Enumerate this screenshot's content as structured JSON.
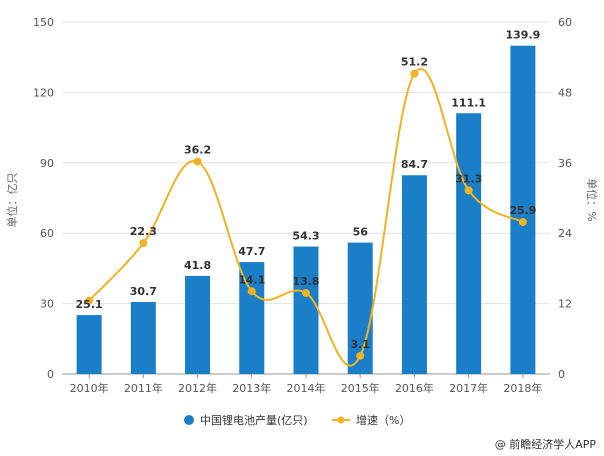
{
  "chart_data": {
    "type": "bar",
    "categories": [
      "2010年",
      "2011年",
      "2012年",
      "2013年",
      "2014年",
      "2015年",
      "2016年",
      "2017年",
      "2018年"
    ],
    "series": [
      {
        "name": "中国锂电池产量(亿只)",
        "type": "bar",
        "axis": "left",
        "color": "#1a7ec8",
        "values": [
          25.1,
          30.7,
          41.8,
          47.7,
          54.3,
          56,
          84.7,
          111.1,
          139.9
        ],
        "labels": [
          "25.1",
          "30.7",
          "41.8",
          "47.7",
          "54.3",
          "56",
          "84.7",
          "111.1",
          "139.9"
        ]
      },
      {
        "name": "增速（%）",
        "type": "line",
        "axis": "right",
        "color": "#f0b323",
        "values": [
          12.5,
          22.3,
          36.2,
          14.1,
          13.8,
          3.1,
          51.2,
          31.3,
          25.9
        ],
        "labels": [
          "",
          "22.3",
          "36.2",
          "14.1",
          "13.8",
          "3.1",
          "51.2",
          "31.3",
          "25.9"
        ]
      }
    ],
    "y_left": {
      "label": "单位：亿只",
      "min": 0,
      "max": 150,
      "ticks": [
        "0",
        "30",
        "60",
        "90",
        "120",
        "150"
      ]
    },
    "y_right": {
      "label": "单位：%",
      "min": 0,
      "max": 60,
      "ticks": [
        "0",
        "12",
        "24",
        "36",
        "48",
        "60"
      ]
    },
    "legend_position": "bottom",
    "grid": true
  },
  "source": "@ 前瞻经济学人APP"
}
